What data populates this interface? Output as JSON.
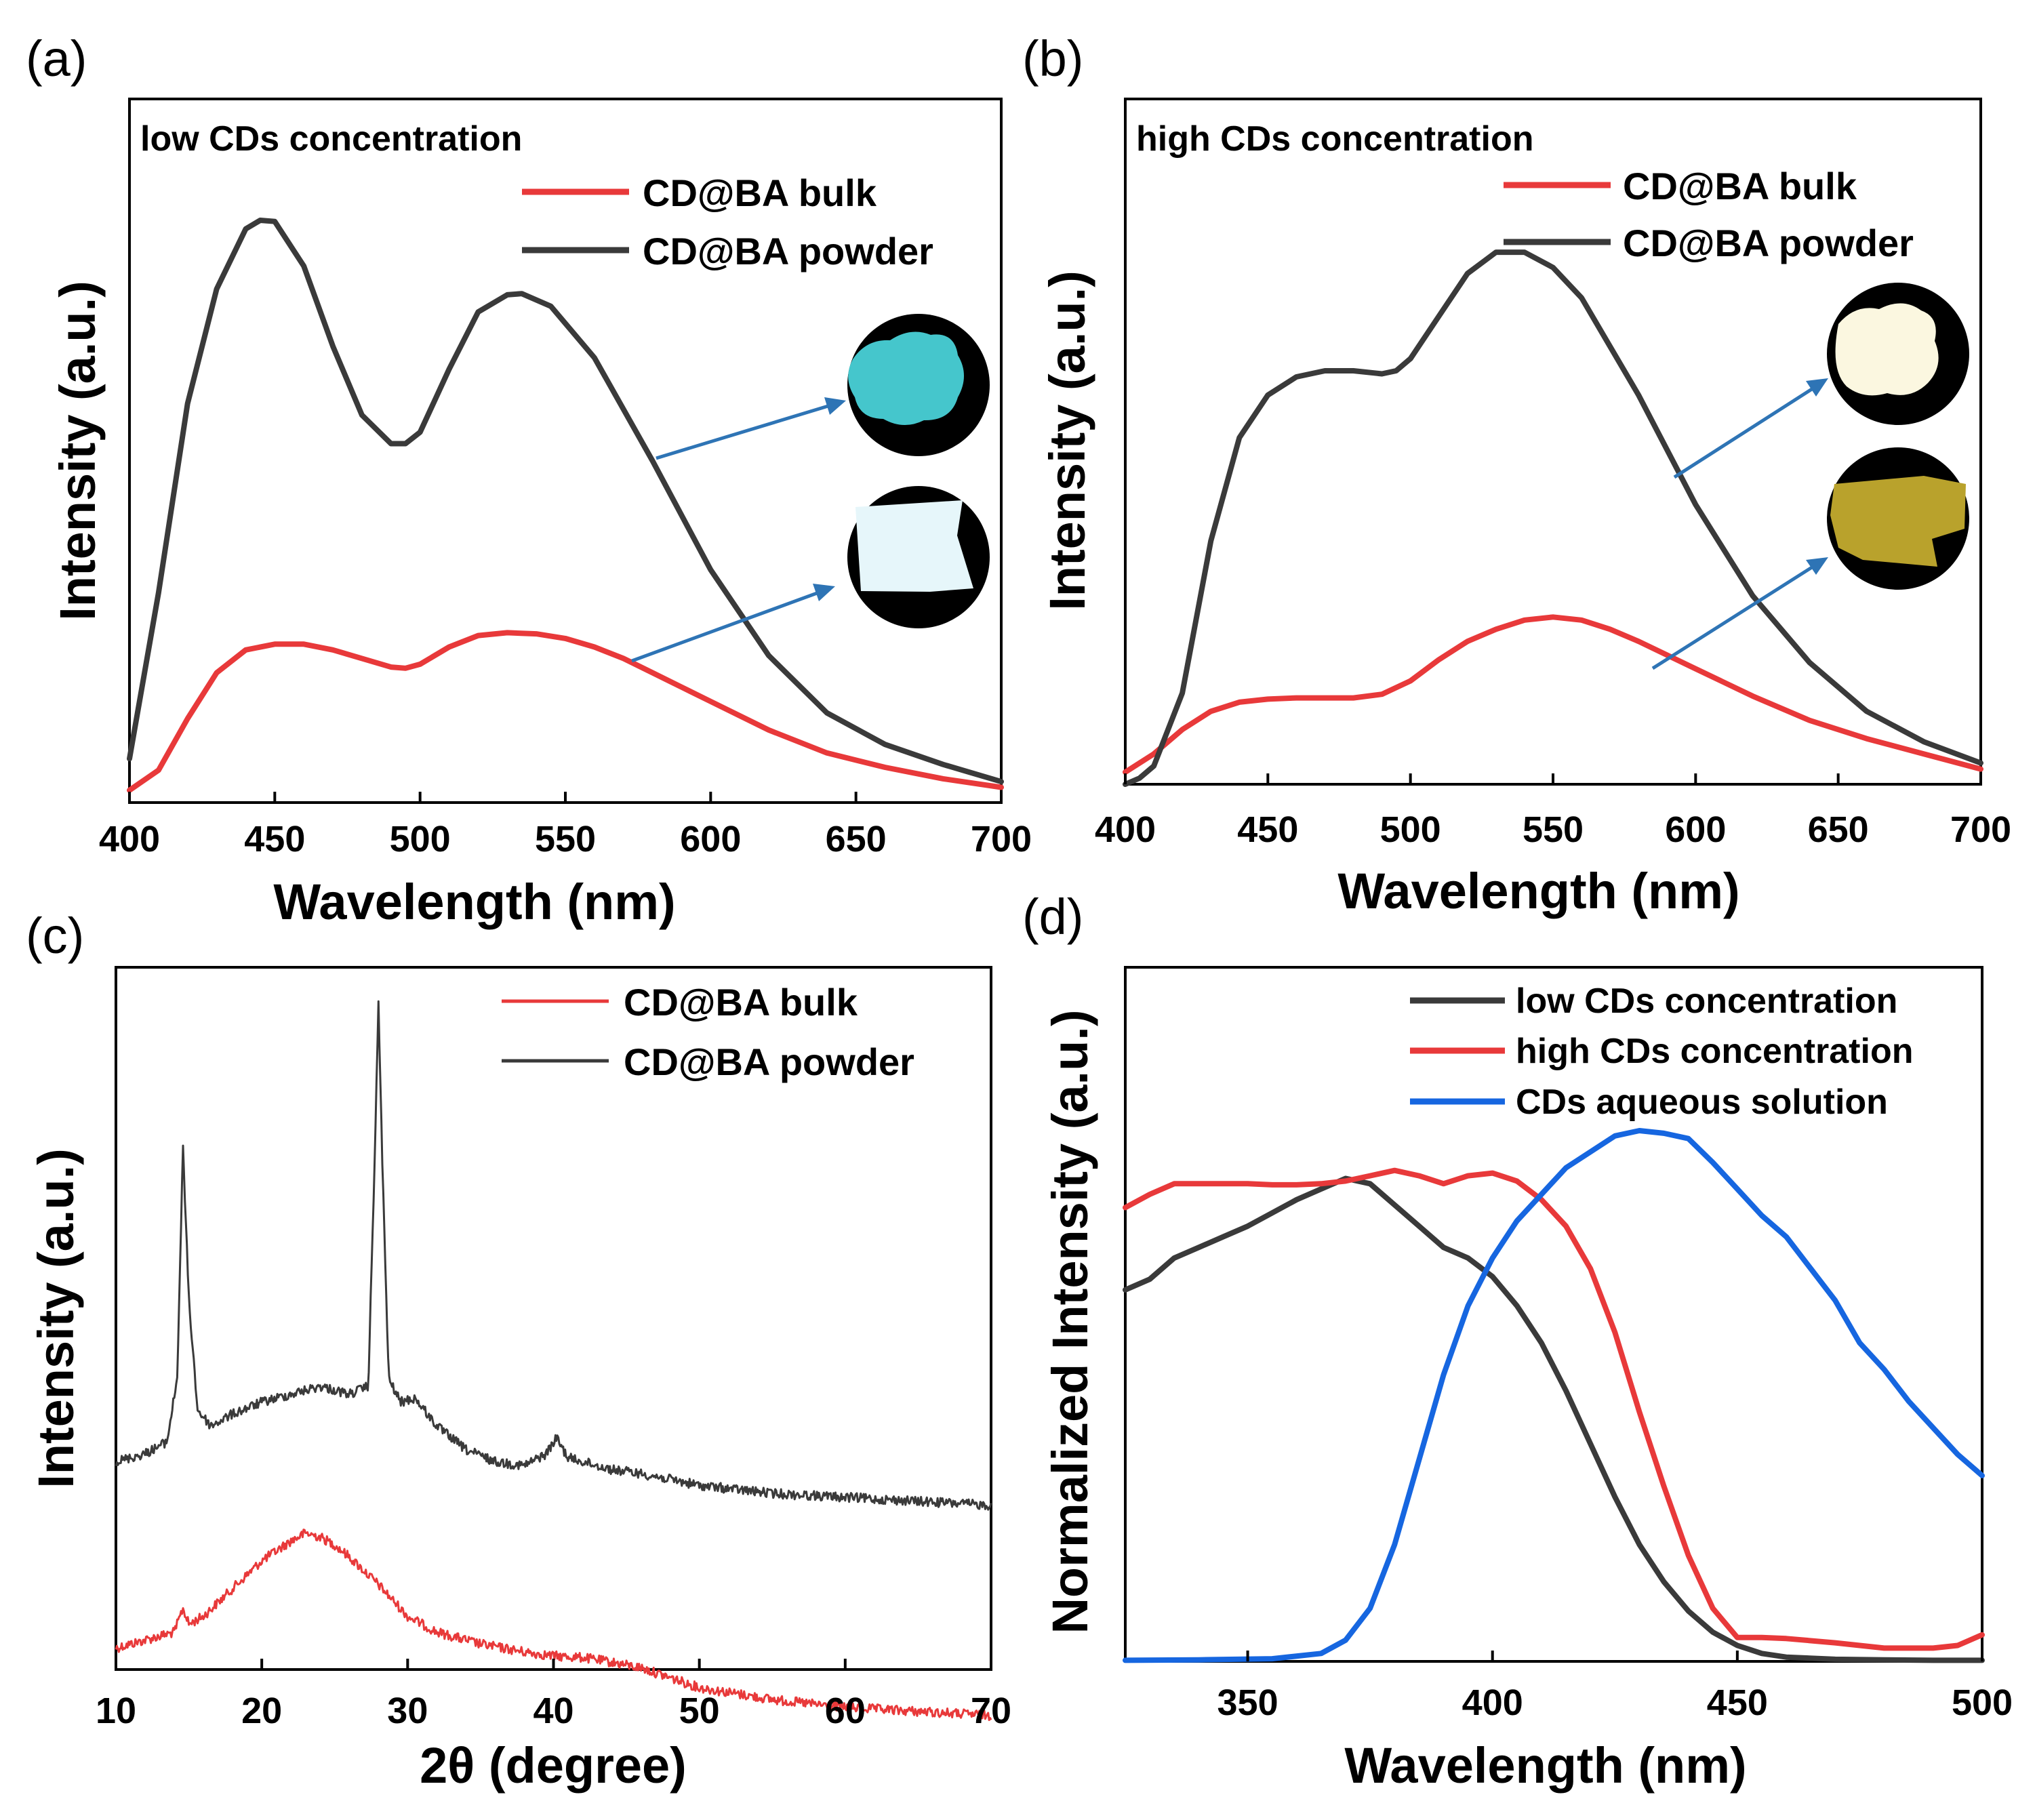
{
  "colors": {
    "red": "#e8393a",
    "dark": "#3a3a3a",
    "blue": "#1666e0",
    "arrow": "#2e74b5",
    "cyan_powder": "#45c6cc",
    "pale_bulk": "#e6f6fa",
    "cream_powder": "#fbf7e0",
    "yellow_bulk": "#b9a22c"
  },
  "chart_data": [
    {
      "panel": "(a)",
      "type": "line",
      "annotation": "low CDs concentration",
      "xlabel": "Wavelength (nm)",
      "ylabel": "Intensity (a.u.)",
      "xlim": [
        400,
        700
      ],
      "ylim": [
        0,
        1
      ],
      "xticks": [
        400,
        450,
        500,
        550,
        600,
        650,
        700
      ],
      "xtick_labels": [
        "400",
        "450",
        "500",
        "550",
        "600",
        "650",
        "700"
      ],
      "series": [
        {
          "name": "CD@BA bulk",
          "color": "#e8393a",
          "x": [
            400,
            410,
            420,
            430,
            440,
            450,
            460,
            470,
            480,
            490,
            495,
            500,
            510,
            520,
            530,
            540,
            550,
            560,
            570,
            580,
            590,
            600,
            620,
            640,
            660,
            680,
            700
          ],
          "y": [
            0.005,
            0.04,
            0.13,
            0.21,
            0.25,
            0.26,
            0.26,
            0.25,
            0.235,
            0.22,
            0.218,
            0.225,
            0.255,
            0.275,
            0.28,
            0.278,
            0.27,
            0.255,
            0.235,
            0.21,
            0.185,
            0.16,
            0.11,
            0.07,
            0.045,
            0.025,
            0.01
          ]
        },
        {
          "name": "CD@BA powder",
          "color": "#3a3a3a",
          "x": [
            400,
            410,
            420,
            430,
            440,
            445,
            450,
            460,
            470,
            480,
            490,
            495,
            500,
            510,
            520,
            530,
            535,
            545,
            560,
            580,
            600,
            620,
            640,
            660,
            680,
            700
          ],
          "y": [
            0.06,
            0.35,
            0.68,
            0.88,
            0.985,
            1.0,
            0.998,
            0.92,
            0.78,
            0.66,
            0.61,
            0.61,
            0.63,
            0.74,
            0.84,
            0.87,
            0.872,
            0.85,
            0.76,
            0.58,
            0.39,
            0.24,
            0.14,
            0.085,
            0.05,
            0.02
          ]
        }
      ]
    },
    {
      "panel": "(b)",
      "type": "line",
      "annotation": "high CDs concentration",
      "xlabel": "Wavelength (nm)",
      "ylabel": "Intensity (a.u.)",
      "xlim": [
        400,
        700
      ],
      "ylim": [
        0,
        1
      ],
      "xticks": [
        400,
        450,
        500,
        550,
        600,
        650,
        700
      ],
      "xtick_labels": [
        "400",
        "450",
        "500",
        "550",
        "600",
        "650",
        "700"
      ],
      "series": [
        {
          "name": "CD@BA bulk",
          "color": "#e8393a",
          "x": [
            400,
            410,
            420,
            430,
            440,
            450,
            460,
            470,
            480,
            490,
            500,
            510,
            520,
            530,
            540,
            550,
            560,
            570,
            580,
            600,
            620,
            640,
            660,
            680,
            700
          ],
          "y": [
            0.02,
            0.05,
            0.09,
            0.12,
            0.135,
            0.14,
            0.142,
            0.142,
            0.142,
            0.148,
            0.17,
            0.205,
            0.235,
            0.255,
            0.27,
            0.275,
            0.27,
            0.255,
            0.235,
            0.19,
            0.145,
            0.105,
            0.075,
            0.05,
            0.025
          ]
        },
        {
          "name": "CD@BA powder",
          "color": "#3a3a3a",
          "x": [
            400,
            405,
            410,
            420,
            430,
            440,
            450,
            460,
            470,
            480,
            490,
            495,
            500,
            510,
            520,
            530,
            540,
            550,
            560,
            580,
            600,
            620,
            640,
            660,
            680,
            700
          ],
          "y": [
            0.0,
            0.01,
            0.03,
            0.15,
            0.4,
            0.57,
            0.64,
            0.67,
            0.68,
            0.68,
            0.675,
            0.68,
            0.7,
            0.77,
            0.84,
            0.875,
            0.875,
            0.85,
            0.8,
            0.64,
            0.46,
            0.31,
            0.2,
            0.12,
            0.07,
            0.035
          ]
        }
      ]
    },
    {
      "panel": "(c)",
      "type": "line",
      "xlabel": "2θ (degree)",
      "ylabel": "Intensity (a.u.)",
      "xlim": [
        10,
        70
      ],
      "ylim": [
        0,
        1
      ],
      "xticks": [
        10,
        20,
        30,
        40,
        50,
        60,
        70
      ],
      "xtick_labels": [
        "10",
        "20",
        "30",
        "40",
        "50",
        "60",
        "70"
      ],
      "series": [
        {
          "name": "CD@BA bulk",
          "color": "#e8393a",
          "x": [
            10,
            12,
            14,
            14.6,
            15,
            16,
            18,
            20,
            22,
            23,
            24,
            25,
            26,
            28,
            30,
            32,
            35,
            38,
            40,
            42,
            44,
            46,
            50,
            55,
            60,
            65,
            70
          ],
          "y": [
            0.11,
            0.12,
            0.13,
            0.16,
            0.14,
            0.15,
            0.185,
            0.22,
            0.245,
            0.255,
            0.25,
            0.24,
            0.225,
            0.19,
            0.15,
            0.13,
            0.115,
            0.105,
            0.1,
            0.098,
            0.092,
            0.085,
            0.06,
            0.045,
            0.035,
            0.03,
            0.025
          ]
        },
        {
          "name": "CD@BA powder",
          "color": "#3a3a3a",
          "x": [
            10,
            12,
            13.5,
            14.2,
            14.6,
            15,
            15.6,
            16.5,
            18,
            20,
            22,
            24,
            26,
            27.3,
            27.7,
            28,
            28.3,
            28.7,
            29.5,
            30.5,
            32,
            34,
            36,
            38,
            39.5,
            40.2,
            41,
            42,
            44,
            46,
            50,
            55,
            60,
            65,
            70
          ],
          "y": [
            0.345,
            0.355,
            0.37,
            0.45,
            0.74,
            0.55,
            0.41,
            0.39,
            0.405,
            0.42,
            0.43,
            0.44,
            0.43,
            0.44,
            0.7,
            0.92,
            0.7,
            0.45,
            0.42,
            0.425,
            0.39,
            0.36,
            0.345,
            0.34,
            0.355,
            0.375,
            0.35,
            0.345,
            0.335,
            0.33,
            0.315,
            0.305,
            0.3,
            0.295,
            0.29
          ]
        }
      ]
    },
    {
      "panel": "(d)",
      "type": "line",
      "xlabel": "Wavelength (nm)",
      "ylabel": "Normalized Intensity (a.u.)",
      "xlim": [
        325,
        500
      ],
      "ylim": [
        0,
        1
      ],
      "xticks": [
        350,
        400,
        450,
        500
      ],
      "xtick_labels": [
        "350",
        "400",
        "450",
        "500"
      ],
      "series": [
        {
          "name": "low CDs concentration",
          "color": "#3a3a3a",
          "x": [
            325,
            330,
            335,
            340,
            345,
            350,
            355,
            360,
            365,
            370,
            375,
            380,
            385,
            390,
            395,
            400,
            405,
            410,
            415,
            420,
            425,
            430,
            435,
            440,
            445,
            450,
            455,
            460,
            470,
            480,
            490,
            500
          ],
          "y": [
            0.7,
            0.72,
            0.76,
            0.78,
            0.8,
            0.82,
            0.845,
            0.87,
            0.89,
            0.91,
            0.9,
            0.86,
            0.82,
            0.78,
            0.76,
            0.725,
            0.67,
            0.6,
            0.51,
            0.41,
            0.31,
            0.22,
            0.15,
            0.095,
            0.055,
            0.03,
            0.015,
            0.008,
            0.004,
            0.003,
            0.002,
            0.002
          ]
        },
        {
          "name": "high CDs concentration",
          "color": "#e8393a",
          "x": [
            325,
            330,
            335,
            340,
            345,
            350,
            355,
            360,
            365,
            370,
            375,
            380,
            385,
            390,
            395,
            400,
            405,
            410,
            415,
            420,
            425,
            430,
            435,
            440,
            445,
            450,
            455,
            460,
            470,
            480,
            490,
            495,
            500
          ],
          "y": [
            0.855,
            0.88,
            0.9,
            0.9,
            0.9,
            0.9,
            0.898,
            0.898,
            0.9,
            0.905,
            0.915,
            0.925,
            0.915,
            0.9,
            0.915,
            0.92,
            0.905,
            0.87,
            0.82,
            0.74,
            0.62,
            0.47,
            0.33,
            0.2,
            0.1,
            0.045,
            0.045,
            0.043,
            0.035,
            0.025,
            0.025,
            0.03,
            0.05
          ]
        },
        {
          "name": "CDs aqueous solution",
          "color": "#1666e0",
          "x": [
            325,
            340,
            355,
            365,
            370,
            375,
            380,
            385,
            390,
            395,
            400,
            405,
            410,
            415,
            420,
            425,
            430,
            435,
            440,
            445,
            450,
            455,
            460,
            465,
            470,
            475,
            480,
            485,
            490,
            495,
            500
          ],
          "y": [
            0.002,
            0.003,
            0.005,
            0.015,
            0.04,
            0.1,
            0.22,
            0.38,
            0.54,
            0.67,
            0.76,
            0.83,
            0.88,
            0.93,
            0.96,
            0.99,
            1.0,
            0.995,
            0.985,
            0.94,
            0.89,
            0.84,
            0.8,
            0.74,
            0.68,
            0.6,
            0.55,
            0.49,
            0.44,
            0.39,
            0.35
          ]
        }
      ]
    }
  ]
}
